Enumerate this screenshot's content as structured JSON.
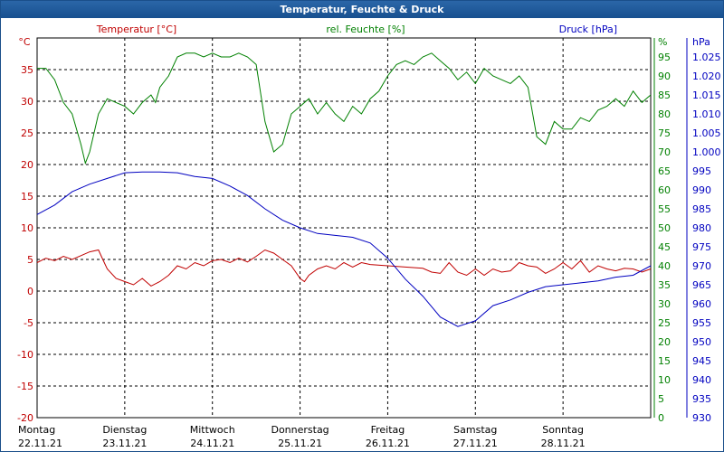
{
  "window_title": "Temperatur, Feuchte & Druck",
  "colors": {
    "temperature": "#c00000",
    "humidity": "#008000",
    "pressure": "#0000c0",
    "grid": "#000000",
    "background": "#ffffff",
    "titlebar": "#1f5a9c"
  },
  "chart_data": {
    "type": "line",
    "grid": true,
    "x_categories": [
      {
        "day": "Montag",
        "date": "22.11.21"
      },
      {
        "day": "Dienstag",
        "date": "23.11.21"
      },
      {
        "day": "Mittwoch",
        "date": "24.11.21"
      },
      {
        "day": "Donnerstag",
        "date": "25.11.21"
      },
      {
        "day": "Freitag",
        "date": "26.11.21"
      },
      {
        "day": "Samstag",
        "date": "27.11.21"
      },
      {
        "day": "Sonntag",
        "date": "28.11.21"
      }
    ],
    "x_range_days": [
      0,
      7
    ],
    "axes": {
      "temperature": {
        "unit": "°C",
        "range": [
          -20,
          40
        ],
        "ticks": [
          -20,
          -15,
          -10,
          -5,
          0,
          5,
          10,
          15,
          20,
          25,
          30,
          35
        ]
      },
      "humidity": {
        "unit": "%",
        "range": [
          0,
          100
        ],
        "ticks": [
          0,
          5,
          10,
          15,
          20,
          25,
          30,
          35,
          40,
          45,
          50,
          55,
          60,
          65,
          70,
          75,
          80,
          85,
          90,
          95
        ]
      },
      "pressure": {
        "unit": "hPa",
        "range": [
          930,
          1030
        ],
        "ticks": [
          "930",
          "935",
          "940",
          "945",
          "950",
          "955",
          "960",
          "965",
          "970",
          "975",
          "980",
          "985",
          "990",
          "995",
          "1.000",
          "1.005",
          "1.010",
          "1.015",
          "1.020",
          "1.025"
        ]
      }
    },
    "series": [
      {
        "key": "temperature",
        "name": "Temperatur [°C]",
        "axis": "temperature",
        "x": [
          0,
          0.1,
          0.2,
          0.3,
          0.4,
          0.5,
          0.6,
          0.7,
          0.75,
          0.8,
          0.9,
          1.0,
          1.1,
          1.2,
          1.3,
          1.4,
          1.5,
          1.6,
          1.7,
          1.8,
          1.9,
          2.0,
          2.1,
          2.2,
          2.3,
          2.4,
          2.5,
          2.6,
          2.7,
          2.8,
          2.9,
          3.0,
          3.05,
          3.1,
          3.2,
          3.3,
          3.4,
          3.5,
          3.6,
          3.7,
          3.8,
          4.0,
          4.2,
          4.4,
          4.5,
          4.6,
          4.7,
          4.8,
          4.9,
          5.0,
          5.1,
          5.2,
          5.3,
          5.4,
          5.5,
          5.6,
          5.7,
          5.8,
          5.9,
          6.0,
          6.1,
          6.2,
          6.3,
          6.4,
          6.5,
          6.6,
          6.7,
          6.8,
          6.9,
          7.0
        ],
        "y": [
          4.5,
          5.2,
          4.8,
          5.5,
          5.0,
          5.6,
          6.2,
          6.5,
          5.0,
          3.5,
          2.0,
          1.5,
          1.0,
          2.0,
          0.8,
          1.5,
          2.5,
          4.0,
          3.5,
          4.5,
          4.0,
          4.8,
          5.0,
          4.5,
          5.2,
          4.6,
          5.5,
          6.5,
          6.0,
          5.0,
          4.0,
          2.0,
          1.5,
          2.5,
          3.5,
          4.0,
          3.5,
          4.5,
          3.8,
          4.5,
          4.2,
          4.0,
          3.8,
          3.6,
          3.0,
          2.8,
          4.5,
          3.0,
          2.5,
          3.5,
          2.5,
          3.5,
          3.0,
          3.2,
          4.5,
          4.0,
          3.8,
          2.8,
          3.5,
          4.5,
          3.5,
          4.8,
          3.0,
          4.0,
          3.5,
          3.2,
          3.6,
          3.5,
          3.0,
          3.5
        ]
      },
      {
        "key": "humidity",
        "name": "rel. Feuchte [%]",
        "axis": "humidity",
        "x": [
          0,
          0.1,
          0.2,
          0.3,
          0.4,
          0.5,
          0.55,
          0.6,
          0.7,
          0.8,
          0.9,
          1.0,
          1.1,
          1.2,
          1.3,
          1.35,
          1.4,
          1.5,
          1.6,
          1.7,
          1.8,
          1.9,
          2.0,
          2.1,
          2.2,
          2.3,
          2.4,
          2.5,
          2.6,
          2.7,
          2.8,
          2.9,
          3.0,
          3.1,
          3.2,
          3.3,
          3.4,
          3.5,
          3.6,
          3.7,
          3.8,
          3.9,
          4.0,
          4.1,
          4.2,
          4.3,
          4.4,
          4.5,
          4.6,
          4.7,
          4.8,
          4.9,
          5.0,
          5.1,
          5.2,
          5.3,
          5.4,
          5.5,
          5.6,
          5.7,
          5.8,
          5.9,
          6.0,
          6.1,
          6.2,
          6.3,
          6.4,
          6.5,
          6.6,
          6.7,
          6.8,
          6.9,
          7.0
        ],
        "y": [
          92,
          92,
          89,
          83,
          80,
          72,
          67,
          70,
          80,
          84,
          83,
          82,
          80,
          83,
          85,
          83,
          87,
          90,
          95,
          96,
          96,
          95,
          96,
          95,
          95,
          96,
          95,
          93,
          78,
          70,
          72,
          80,
          82,
          84,
          80,
          83,
          80,
          78,
          82,
          80,
          84,
          86,
          90,
          93,
          94,
          93,
          95,
          96,
          94,
          92,
          89,
          91,
          88,
          92,
          90,
          89,
          88,
          90,
          87,
          74,
          72,
          78,
          76,
          76,
          79,
          78,
          81,
          82,
          84,
          82,
          86,
          83,
          85
        ]
      },
      {
        "key": "pressure",
        "name": "Druck [hPa]",
        "axis": "pressure",
        "x": [
          0,
          0.2,
          0.4,
          0.6,
          0.8,
          1.0,
          1.2,
          1.4,
          1.6,
          1.8,
          2.0,
          2.2,
          2.4,
          2.6,
          2.8,
          3.0,
          3.2,
          3.4,
          3.6,
          3.8,
          4.0,
          4.2,
          4.4,
          4.6,
          4.8,
          5.0,
          5.2,
          5.4,
          5.6,
          5.8,
          6.0,
          6.2,
          6.4,
          6.6,
          6.8,
          7.0
        ],
        "y": [
          983.5,
          986.0,
          989.5,
          991.5,
          993.0,
          994.5,
          994.7,
          994.7,
          994.5,
          993.5,
          993.0,
          991.0,
          988.5,
          985.0,
          982.0,
          980.0,
          978.5,
          978.0,
          977.5,
          976.0,
          972.0,
          966.5,
          962.0,
          956.5,
          954.0,
          955.5,
          959.5,
          961.0,
          963.0,
          964.5,
          965.0,
          965.5,
          966.0,
          967.0,
          967.5,
          970.0
        ]
      }
    ]
  }
}
